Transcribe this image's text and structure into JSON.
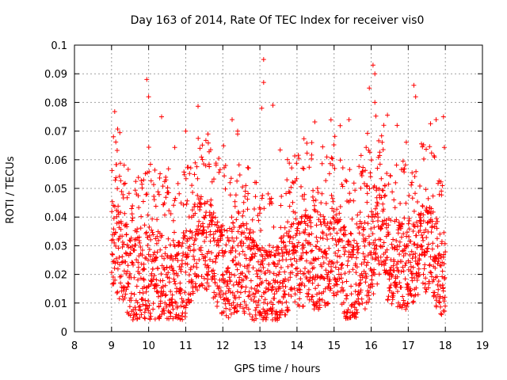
{
  "chart_data": {
    "type": "scatter",
    "title": "Day 163 of 2014, Rate Of TEC Index for receiver vis0",
    "xlabel": "GPS time / hours",
    "ylabel": "ROTI / TECUs",
    "xlim": [
      8,
      19
    ],
    "ylim": [
      0,
      0.1
    ],
    "xticks": [
      "8",
      "9",
      "10",
      "11",
      "12",
      "13",
      "14",
      "15",
      "16",
      "17",
      "18",
      "19"
    ],
    "yticks": [
      "0",
      "0.01",
      "0.02",
      "0.03",
      "0.04",
      "0.05",
      "0.06",
      "0.07",
      "0.08",
      "0.09",
      "0.1"
    ],
    "grid": true,
    "marker": "+",
    "color": "#ff0000",
    "series": [
      {
        "name": "ROTI",
        "time_range": [
          9.0,
          18.0
        ],
        "sample_interval_hours": 0.004,
        "typical_range": [
          0.005,
          0.045
        ],
        "median_approx": 0.022,
        "notable_peaks": [
          {
            "x": 9.05,
            "y": 0.068
          },
          {
            "x": 9.95,
            "y": 0.088
          },
          {
            "x": 10.0,
            "y": 0.082
          },
          {
            "x": 10.35,
            "y": 0.075
          },
          {
            "x": 11.0,
            "y": 0.07
          },
          {
            "x": 11.6,
            "y": 0.069
          },
          {
            "x": 12.25,
            "y": 0.074
          },
          {
            "x": 12.4,
            "y": 0.07
          },
          {
            "x": 13.05,
            "y": 0.078
          },
          {
            "x": 13.1,
            "y": 0.095
          },
          {
            "x": 13.1,
            "y": 0.087
          },
          {
            "x": 13.35,
            "y": 0.079
          },
          {
            "x": 14.4,
            "y": 0.066
          },
          {
            "x": 15.4,
            "y": 0.074
          },
          {
            "x": 15.95,
            "y": 0.085
          },
          {
            "x": 16.05,
            "y": 0.093
          },
          {
            "x": 16.1,
            "y": 0.09
          },
          {
            "x": 16.1,
            "y": 0.08
          },
          {
            "x": 16.7,
            "y": 0.072
          },
          {
            "x": 17.15,
            "y": 0.086
          },
          {
            "x": 17.2,
            "y": 0.082
          },
          {
            "x": 17.75,
            "y": 0.074
          },
          {
            "x": 17.95,
            "y": 0.075
          }
        ]
      }
    ]
  }
}
